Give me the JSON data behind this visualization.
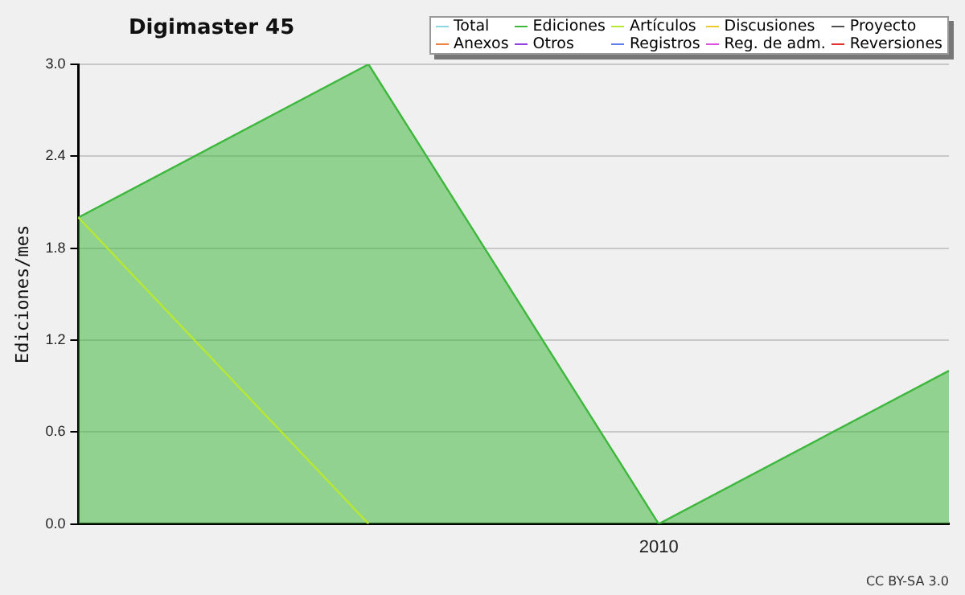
{
  "chart_data": {
    "type": "area",
    "title": "Digimaster 45",
    "ylabel": "Ediciones/mes",
    "categories": [
      null,
      null,
      "2010",
      null
    ],
    "series": [
      {
        "name": "Total",
        "color": "#8ad8e0",
        "type": "line",
        "values": [
          null,
          null,
          null,
          null
        ]
      },
      {
        "name": "Ediciones",
        "color": "#3db83d",
        "values": [
          2,
          3,
          0,
          1
        ]
      },
      {
        "name": "Artículos",
        "color": "#b8e830",
        "type": "line",
        "values": [
          2,
          0,
          null,
          null
        ]
      },
      {
        "name": "Discusiones",
        "color": "#f0c830",
        "type": "line",
        "values": [
          null,
          null,
          null,
          null
        ]
      },
      {
        "name": "Proyecto",
        "color": "#505050",
        "type": "line",
        "values": [
          null,
          null,
          null,
          null
        ]
      },
      {
        "name": "Anexos",
        "color": "#f08040",
        "type": "line",
        "values": [
          null,
          null,
          null,
          null
        ]
      },
      {
        "name": "Otros",
        "color": "#9040e0",
        "type": "line",
        "values": [
          null,
          null,
          null,
          null
        ]
      },
      {
        "name": "Registros",
        "color": "#6080f0",
        "type": "line",
        "values": [
          null,
          null,
          null,
          null
        ]
      },
      {
        "name": "Reg. de adm.",
        "color": "#e050e0",
        "type": "line",
        "values": [
          null,
          null,
          null,
          null
        ]
      },
      {
        "name": "Reversiones",
        "color": "#e03030",
        "type": "line",
        "values": [
          null,
          null,
          null,
          null
        ]
      }
    ],
    "ylim": [
      0,
      3
    ],
    "yticks": [
      {
        "value": 0,
        "label": "0.0"
      },
      {
        "value": 0.6,
        "label": "0.6"
      },
      {
        "value": 1.2,
        "label": "1.2"
      },
      {
        "value": 1.8,
        "label": "1.8"
      },
      {
        "value": 2.4,
        "label": "2.4"
      },
      {
        "value": 3,
        "label": "3.0"
      }
    ],
    "grid": "y",
    "legend": "top right",
    "marker": "none",
    "annotations": [
      "CC BY-SA 3.0"
    ]
  }
}
